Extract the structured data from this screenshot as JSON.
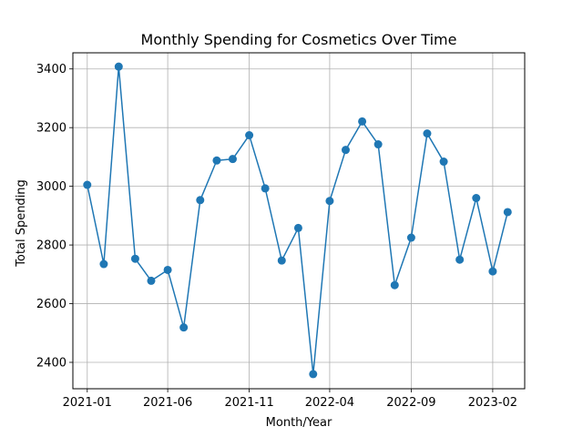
{
  "chart_data": {
    "type": "line",
    "title": "Monthly Spending for Cosmetics Over Time",
    "xlabel": "Month/Year",
    "ylabel": "Total Spending",
    "grid": true,
    "line_color": "#1f77b4",
    "marker": "circle",
    "x_tick_labels": [
      "2021-01",
      "2021-06",
      "2021-11",
      "2022-04",
      "2022-09",
      "2023-02"
    ],
    "x_tick_dates": [
      "2021-01-01",
      "2021-06-01",
      "2021-11-01",
      "2022-04-01",
      "2022-09-01",
      "2023-02-01"
    ],
    "y_ticks": [
      2400,
      2600,
      2800,
      3000,
      3200,
      3400
    ],
    "ylim": [
      2310,
      3455
    ],
    "xlim": [
      "2020-12-05",
      "2023-04-02"
    ],
    "series": [
      {
        "x": [
          "2021-01-01",
          "2021-02-01",
          "2021-03-01",
          "2021-04-01",
          "2021-05-01",
          "2021-06-01",
          "2021-07-01",
          "2021-08-01",
          "2021-09-01",
          "2021-10-01",
          "2021-11-01",
          "2021-12-01",
          "2022-01-01",
          "2022-02-01",
          "2022-03-01",
          "2022-04-01",
          "2022-05-01",
          "2022-06-01",
          "2022-07-01",
          "2022-08-01",
          "2022-09-01",
          "2022-10-01",
          "2022-11-01",
          "2022-12-01",
          "2023-01-01",
          "2023-02-01",
          "2023-03-01"
        ],
        "y": [
          3005,
          2735,
          3408,
          2753,
          2678,
          2715,
          2519,
          2953,
          3088,
          3093,
          3174,
          2993,
          2747,
          2858,
          2360,
          2950,
          3124,
          3221,
          3143,
          2663,
          2825,
          3180,
          3084,
          2750,
          2960,
          2710,
          2912
        ]
      }
    ]
  }
}
